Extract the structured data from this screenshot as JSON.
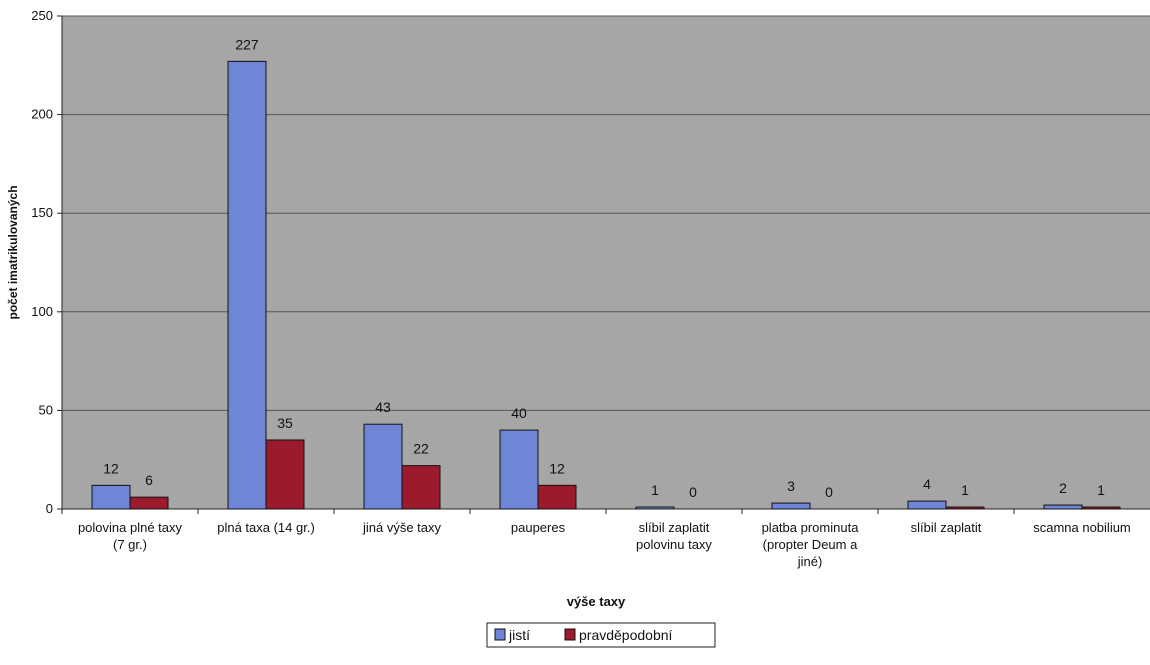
{
  "chart_data": {
    "type": "bar",
    "title": "",
    "xlabel": "výše taxy",
    "ylabel": "počet imatrikulovaných",
    "ylim": [
      0,
      250
    ],
    "yticks": [
      0,
      50,
      100,
      150,
      200,
      250
    ],
    "grid": true,
    "legend_position": "bottom",
    "categories": [
      [
        "polovina plné taxy",
        "(7 gr.)"
      ],
      [
        "plná taxa (14 gr.)"
      ],
      [
        "jiná výše taxy"
      ],
      [
        "pauperes"
      ],
      [
        "slíbil zaplatit",
        "polovinu taxy"
      ],
      [
        "platba prominuta",
        "(propter Deum a",
        "jiné)"
      ],
      [
        "slíbil zaplatit"
      ],
      [
        "scamna nobilium"
      ]
    ],
    "series": [
      {
        "name": "jistí",
        "color": "#6f86d6",
        "values": [
          12,
          227,
          43,
          40,
          1,
          3,
          4,
          2
        ]
      },
      {
        "name": "pravděpodobní",
        "color": "#9b1b2c",
        "values": [
          6,
          35,
          22,
          12,
          0,
          0,
          1,
          1
        ]
      }
    ],
    "plot_background": "#a6a6a6"
  }
}
